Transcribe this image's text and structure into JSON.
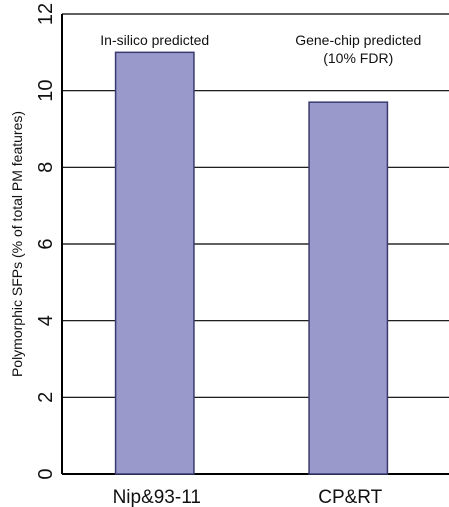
{
  "chart_data": {
    "type": "bar",
    "categories": [
      "Nip&93-11",
      "CP&RT"
    ],
    "values": [
      11.0,
      9.7
    ],
    "annotations": [
      "In-silico predicted",
      "Gene-chip predicted\n(10% FDR)"
    ],
    "xlabel": "",
    "ylabel": "Polymorphic SFPs (% of total PM features)",
    "ylim": [
      0,
      12
    ],
    "yticks": [
      0,
      2,
      4,
      6,
      8,
      10,
      12
    ],
    "grid": true,
    "bar_color": "#9999cc",
    "bar_edge_color": "#3a3a70"
  }
}
